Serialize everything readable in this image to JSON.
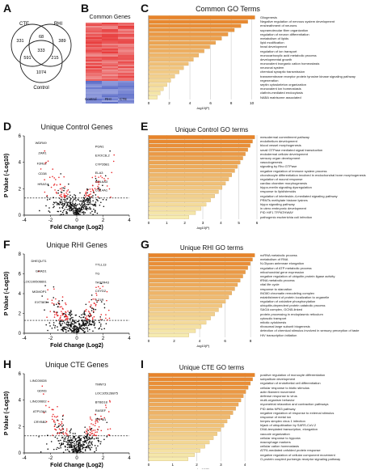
{
  "panels": {
    "A": {
      "label": "A",
      "sets": [
        "CTE",
        "RHI",
        "Control"
      ],
      "regions": {
        "cte_only": "331",
        "cte_rhi": "68",
        "rhi_only": "389",
        "all": "333",
        "cte_ctrl": "591",
        "rhi_ctrl": "215",
        "ctrl_only": "1074"
      }
    },
    "B": {
      "label": "B",
      "title": "Common Genes",
      "columns": [
        "Control",
        "RHI",
        "CTE"
      ]
    },
    "C": {
      "label": "C",
      "title": "Common GO Terms",
      "xlabel": "-log10(P)",
      "ticks": [
        "0",
        "2",
        "4",
        "6",
        "8",
        "10"
      ],
      "terms": [
        "Gliogenesis",
        "Negative regulation of nervous system development",
        "ensheathment of neurons",
        "supramolecular fiber organization",
        "regulation of neuron differentiation",
        "metabolism of lipids",
        "lipid modification",
        "head development",
        "regulation of ion transport",
        "monocarboxylic acid metabolic process",
        "developmental growth",
        "monovalent inorganic cation homeostasis",
        "neuronal system",
        "chemical synaptic transmission",
        "transmembrane receptor protein tyrosine kinase signaling pathway",
        "regeneration",
        "septin cytoskeleton organization",
        "monovalent ion homeostasis",
        "clathrin-mediated endocytosis",
        "NABA matrisome associated"
      ]
    },
    "D": {
      "label": "D",
      "title": "Unique Control Genes",
      "ylabel": "P Value (-Log10)",
      "xlabel": "Fold Change (Log2)",
      "xticks": [
        "-4",
        "-2",
        "0",
        "2",
        "4"
      ],
      "yticks": [
        "0",
        "2",
        "4",
        "6"
      ],
      "genes_left": [
        "WDR49",
        "ZAR1",
        "F2RL2",
        "CD38",
        "HRAS"
      ],
      "genes_right": [
        "PGN1",
        "EXOC3L2",
        "CYP26B1",
        "ELA3",
        "COL6A3",
        "COL4A1"
      ]
    },
    "E": {
      "label": "E",
      "title": "Unique Control GO terms",
      "xlabel": "-log10(P)",
      "ticks": [
        "0",
        "1",
        "2",
        "3",
        "4",
        "5",
        "6"
      ],
      "terms": [
        "mesodermal commitment pathway",
        "endothelium development",
        "blood vessel morphogenesis",
        "small GTPase mediated signal transduction",
        "endodermal cellular development",
        "sensory organ development",
        "vasculogenesis",
        "signaling by Rho GTPase",
        "negative regulation of immune system process",
        "chondrocyte differentiation involved in endochondral bone morphogenesis",
        "regulation of wound response",
        "cardiac chamber morphogenesis",
        "hippo-merlin signaling dysregulation",
        "response to lipid/steroids",
        "regulation of interleukin-4-mediated signaling pathway",
        "PRMTs methylate histone lysines",
        "hippo signaling pathway",
        "in utero embryonic development",
        "PID HIF1 TFPATHWAY",
        "pathogenic escherichia coli infection"
      ]
    },
    "F": {
      "label": "F",
      "title": "Unique RHI Genes",
      "ylabel": "P Value (-Log10)",
      "xlabel": "Fold Change (Log2)",
      "xticks": [
        "-4",
        "-2",
        "0",
        "2",
        "4"
      ],
      "yticks": [
        "0",
        "2",
        "4",
        "6",
        "8"
      ],
      "genes_left": [
        "DHEQUT1",
        "GRAD1",
        "LOC100506691",
        "MGMOP1",
        "EXT587"
      ],
      "genes_right": [
        "TTLL13",
        "TG",
        "TAS2R43",
        "CXYD2",
        "IL21R"
      ]
    },
    "G": {
      "label": "G",
      "title": "Unique RHI GO terms",
      "xlabel": "-log10(P)",
      "ticks": [
        "0",
        "2",
        "4",
        "6",
        "8"
      ],
      "terms": [
        "ncRNA metabolic process",
        "metabolism of RNA",
        "N-Glycan antennae elongation",
        "regulation of ATP metabolic process",
        "mitochondrial gene expression",
        "negative regulation of ubiquitin protein ligase activity",
        "tRNA metabolic process",
        "vital life cycle",
        "response to starvation",
        "INO80 chromatin remodeling complex",
        "establishment of protein localization to organelle",
        "regulation of oxidative phosphorylation",
        "ubiquitin-dependent protein catabolic process",
        "SAGA complex, GCN5-linked",
        "protein processing in endoplasmic reticulum",
        "cytosolic transport",
        "mitotic cytokinesis",
        "ribosomal large subunit biogenesis",
        "detection of chemical stimulus involved in sensory perception of taste",
        "HIV transcription initiation"
      ]
    },
    "H": {
      "label": "H",
      "title": "Unique CTE Genes",
      "ylabel": "P Value (-Log10)",
      "xlabel": "Fold Change (Log2)",
      "xticks": [
        "-4",
        "-2",
        "0",
        "2",
        "4"
      ],
      "yticks": [
        "0",
        "2",
        "4",
        "6"
      ],
      "genes_left": [
        "LINC00028",
        "GDNS",
        "LINC00602",
        "ATP13A4",
        "CRYBB2"
      ],
      "genes_right": [
        "TMNT3",
        "LOC105128875",
        "BTBD18",
        "RASEF",
        "TRPM1"
      ]
    },
    "I": {
      "label": "I",
      "title": "Unique CTE GO terms",
      "xlabel": "-log10(P)",
      "ticks": [
        "0",
        "1",
        "2",
        "3",
        "4"
      ],
      "terms": [
        "positive regulation of monocyte differentiation",
        "subpallium development",
        "regulation of endothelial cell differentiation",
        "cellular response to biotic stimulus",
        "actin filament movement",
        "defense response to virus",
        "multi-organism behavior",
        "myometrial relaxation and contraction pathways",
        "PID delta NP63 pathway",
        "negative regulation of response to external stimulus",
        "response of metal ion",
        "herpes simplex virus 1 infection",
        "hijack of ubiquitination by SARS-CoV-2",
        "DNA-templated transcription, elongation",
        "vacuole organization",
        "cellular response to hypoxia",
        "macrophage markers",
        "cellular cation homeostasis",
        "ATF6-mediated unfolded protein response",
        "negative regulation of cellular component movement",
        "O-protein coupled purinergic receptor signaling pathway"
      ]
    }
  },
  "colors": {
    "bar_top": "#e8832a",
    "bar_bottom": "#f6ecb0",
    "red_dot": "#e8282b",
    "heat_red": "#e83a3a",
    "heat_blue": "#5b6cc8"
  }
}
